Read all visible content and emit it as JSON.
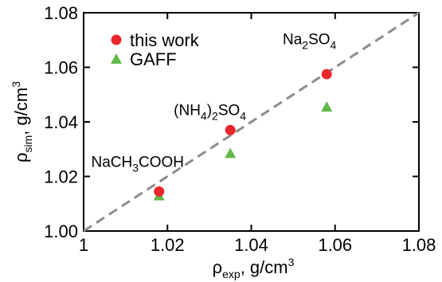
{
  "chart_data": {
    "type": "scatter",
    "xlim": [
      1.0,
      1.08
    ],
    "ylim": [
      1.0,
      1.08
    ],
    "xticks": [
      "1",
      "1.02",
      "1.04",
      "1.06",
      "1.08"
    ],
    "yticks": [
      "1.00",
      "1.02",
      "1.04",
      "1.06",
      "1.08"
    ],
    "xlabel": {
      "main": "ρ",
      "sub": "exp",
      "rest": ", g/cm",
      "sup": "3"
    },
    "ylabel": {
      "main": "ρ",
      "sub": "sim",
      "rest": ", g/cm",
      "sup": "3"
    },
    "reference_line": {
      "style": "dashed",
      "color": "#8c8c8c",
      "from": [
        1.0,
        1.0
      ],
      "to": [
        1.08,
        1.08
      ]
    },
    "legend_position": "top-left",
    "series": [
      {
        "name": "this work",
        "marker": "circle",
        "color": "#e8282b",
        "x": [
          1.018,
          1.035,
          1.058
        ],
        "y": [
          1.0145,
          1.037,
          1.0575
        ]
      },
      {
        "name": "GAFF",
        "marker": "triangle",
        "color": "#62b84a",
        "x": [
          1.018,
          1.035,
          1.058
        ],
        "y": [
          1.013,
          1.0285,
          1.0455
        ]
      }
    ],
    "annotations": [
      {
        "parts": [
          {
            "t": "NaCH"
          },
          {
            "t": "3",
            "sub": true
          },
          {
            "t": "COOH"
          }
        ],
        "x": 1.0018,
        "y": 1.0235
      },
      {
        "parts": [
          {
            "t": "(NH"
          },
          {
            "t": "4",
            "sub": true
          },
          {
            "t": ")"
          },
          {
            "t": "2",
            "sub": true
          },
          {
            "t": "SO"
          },
          {
            "t": "4",
            "sub": true
          }
        ],
        "x": 1.0215,
        "y": 1.0425
      },
      {
        "parts": [
          {
            "t": "Na"
          },
          {
            "t": "2",
            "sub": true
          },
          {
            "t": "SO"
          },
          {
            "t": "4",
            "sub": true
          }
        ],
        "x": 1.0475,
        "y": 1.0685
      }
    ]
  }
}
